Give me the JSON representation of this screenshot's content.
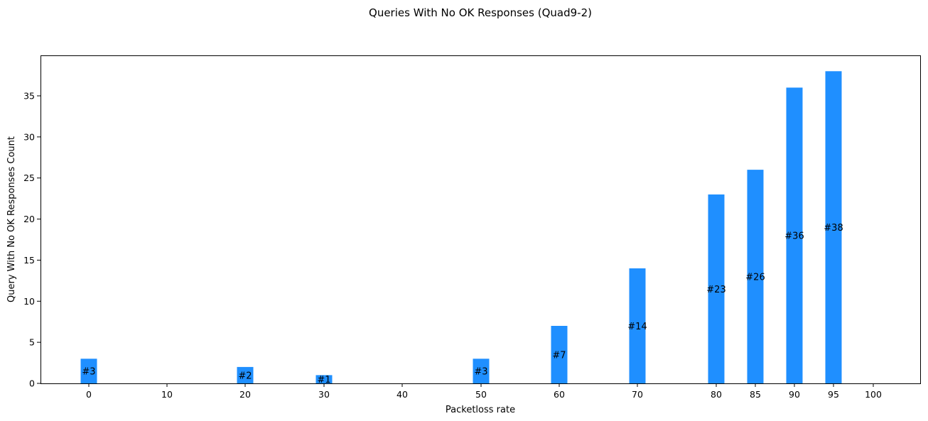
{
  "chart_data": {
    "type": "bar",
    "title": "Queries With No OK Responses (Quad9-2)",
    "xlabel": "Packetloss rate",
    "ylabel": "Query With No OK Responses Count",
    "x_ticks": [
      0,
      10,
      20,
      30,
      40,
      50,
      60,
      70,
      80,
      85,
      90,
      95,
      100
    ],
    "y_ticks": [
      0,
      5,
      10,
      15,
      20,
      25,
      30,
      35
    ],
    "ylim": [
      0,
      40
    ],
    "grid": false,
    "bar_color": "#1f8fff",
    "categories": [
      0,
      20,
      30,
      50,
      60,
      70,
      80,
      85,
      90,
      95
    ],
    "values": [
      3,
      2,
      1,
      3,
      7,
      14,
      23,
      26,
      36,
      38
    ],
    "data_labels": [
      "#3",
      "#2",
      "#1",
      "#3",
      "#7",
      "#14",
      "#23",
      "#26",
      "#36",
      "#38"
    ]
  }
}
